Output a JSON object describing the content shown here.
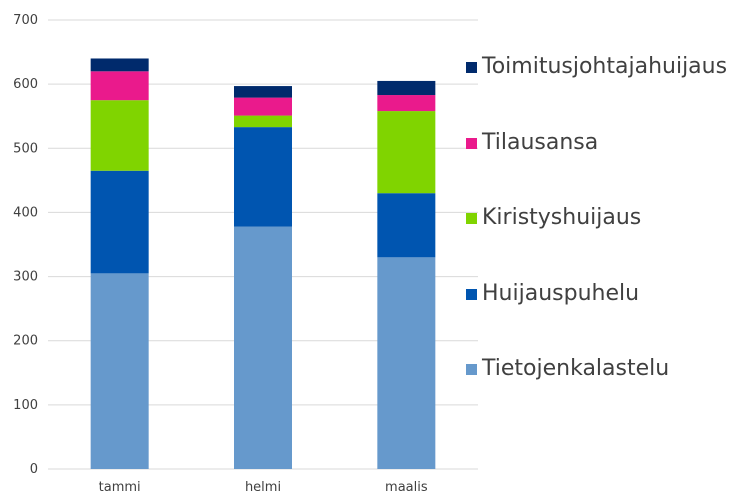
{
  "chart_data": {
    "type": "bar",
    "stacked": true,
    "categories": [
      "tammi",
      "helmi",
      "maalis"
    ],
    "series": [
      {
        "name": "Tietojenkalastelu",
        "color": "#6699cc",
        "values": [
          305,
          378,
          330
        ]
      },
      {
        "name": "Huijauspuhelu",
        "color": "#0055b0",
        "values": [
          160,
          155,
          100
        ]
      },
      {
        "name": "Kiristyshuijaus",
        "color": "#80d400",
        "values": [
          110,
          18,
          128
        ]
      },
      {
        "name": "Tilausansa",
        "color": "#ea1a8c",
        "values": [
          45,
          28,
          25
        ]
      },
      {
        "name": "Toimitusjohtajahuijaus",
        "color": "#002a6c",
        "values": [
          20,
          18,
          22
        ]
      }
    ],
    "yticks": [
      0,
      100,
      200,
      300,
      400,
      500,
      600,
      700
    ],
    "ylim": [
      0,
      700
    ],
    "grid": true,
    "legend_position": "right",
    "legend_order": "reversed",
    "title": "",
    "xlabel": "",
    "ylabel": ""
  }
}
